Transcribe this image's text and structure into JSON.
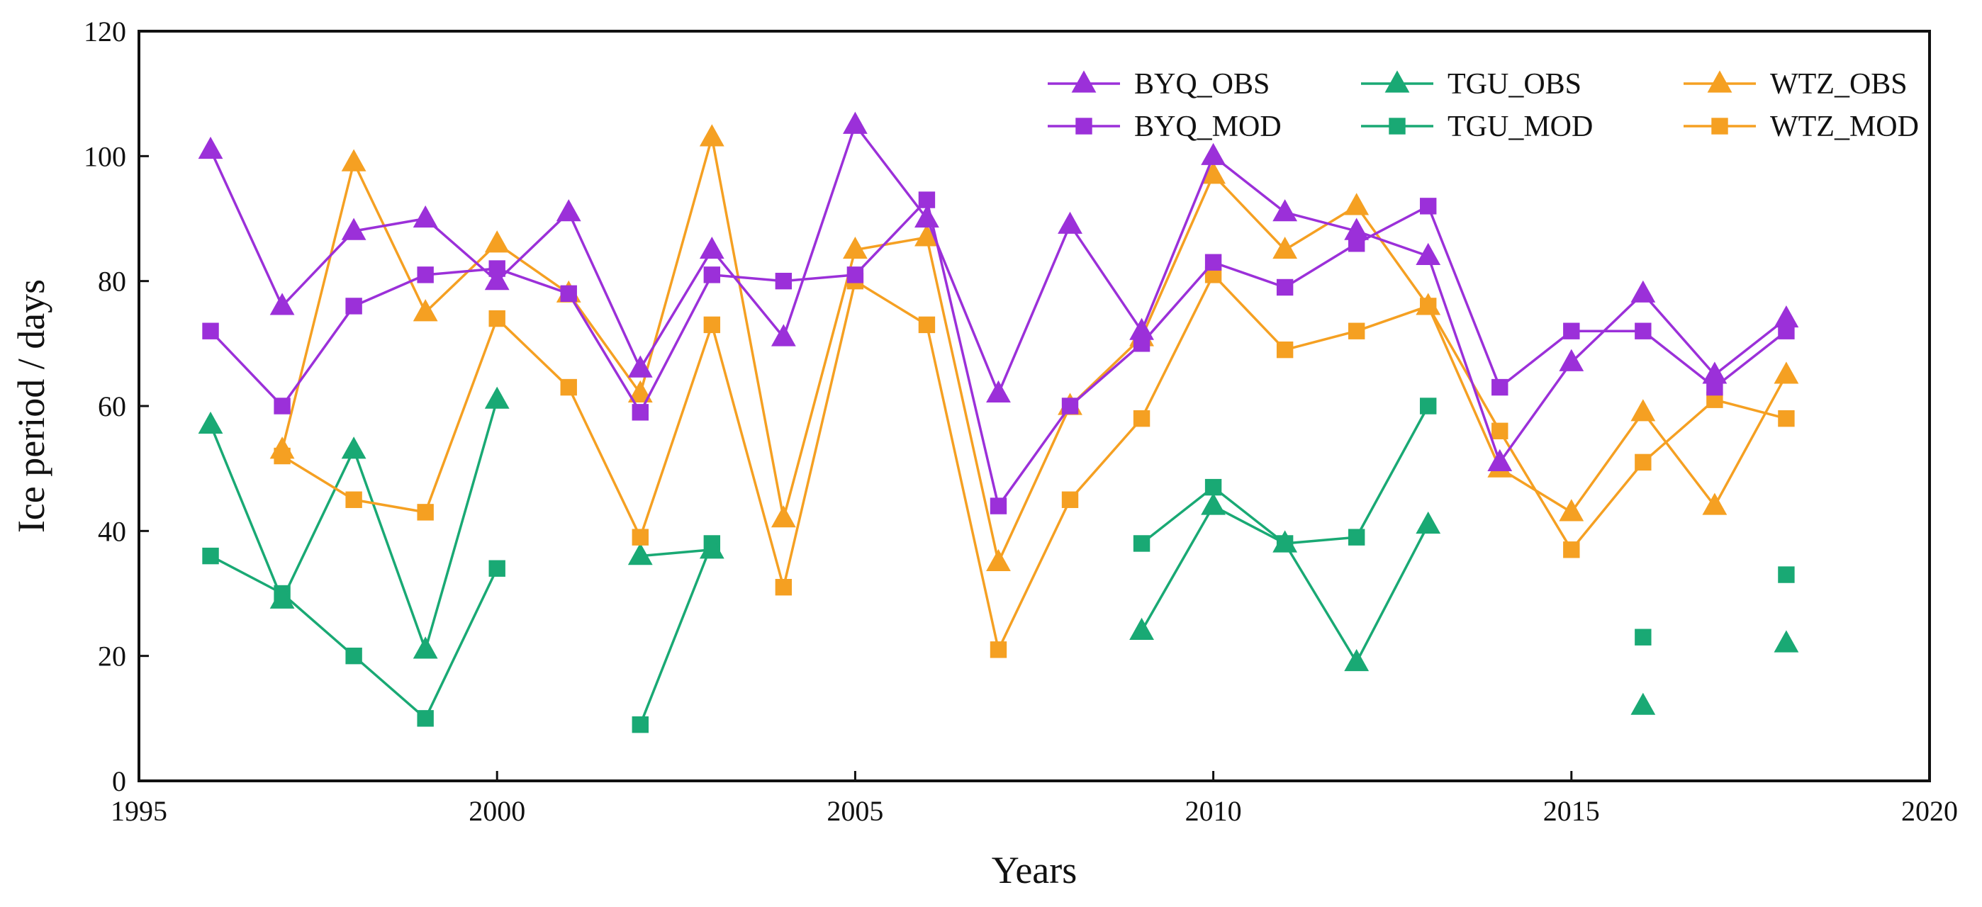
{
  "chart_data": {
    "type": "line",
    "title": "",
    "xlabel": "Years",
    "ylabel": "Ice period / days",
    "xlim": [
      1995,
      2020
    ],
    "ylim": [
      0,
      120
    ],
    "xticks": [
      "1995",
      "2000",
      "2005",
      "2010",
      "2015",
      "2020"
    ],
    "yticks": [
      "0",
      "20",
      "40",
      "60",
      "80",
      "100",
      "120"
    ],
    "grid": false,
    "legend_position": "top-right",
    "legend_columns": 3,
    "x": [
      1996,
      1997,
      1998,
      1999,
      2000,
      2001,
      2002,
      2003,
      2004,
      2005,
      2006,
      2007,
      2008,
      2009,
      2010,
      2011,
      2012,
      2013,
      2014,
      2015,
      2016,
      2017,
      2018
    ],
    "series": [
      {
        "name": "BYQ_OBS",
        "color": "#9b30d9",
        "marker": "triangle",
        "values": [
          101,
          76,
          88,
          90,
          80,
          91,
          66,
          85,
          71,
          105,
          90,
          62,
          89,
          72,
          100,
          91,
          88,
          84,
          51,
          67,
          78,
          65,
          74
        ]
      },
      {
        "name": "TGU_OBS",
        "color": "#19a974",
        "marker": "triangle",
        "values": [
          57,
          29,
          53,
          21,
          61,
          null,
          36,
          37,
          null,
          null,
          null,
          null,
          null,
          24,
          44,
          38,
          19,
          41,
          null,
          null,
          12,
          null,
          22
        ]
      },
      {
        "name": "WTZ_OBS",
        "color": "#f5a022",
        "marker": "triangle",
        "values": [
          null,
          53,
          99,
          75,
          86,
          78,
          62,
          103,
          42,
          85,
          87,
          35,
          60,
          71,
          97,
          85,
          92,
          76,
          50,
          43,
          59,
          44,
          65
        ]
      },
      {
        "name": "BYQ_MOD",
        "color": "#9b30d9",
        "marker": "square",
        "values": [
          72,
          60,
          76,
          81,
          82,
          78,
          59,
          81,
          80,
          81,
          93,
          44,
          60,
          70,
          83,
          79,
          86,
          92,
          63,
          72,
          72,
          63,
          72
        ]
      },
      {
        "name": "TGU_MOD",
        "color": "#19a974",
        "marker": "square",
        "values": [
          36,
          30,
          20,
          10,
          34,
          null,
          9,
          38,
          null,
          null,
          null,
          null,
          null,
          38,
          47,
          38,
          39,
          60,
          null,
          null,
          23,
          null,
          33
        ]
      },
      {
        "name": "WTZ_MOD",
        "color": "#f5a022",
        "marker": "square",
        "values": [
          null,
          52,
          45,
          43,
          74,
          63,
          39,
          73,
          31,
          80,
          73,
          21,
          45,
          58,
          81,
          69,
          72,
          76,
          56,
          37,
          51,
          61,
          58
        ]
      }
    ],
    "legend_order": [
      "BYQ_OBS",
      "TGU_OBS",
      "WTZ_OBS",
      "BYQ_MOD",
      "TGU_MOD",
      "WTZ_MOD"
    ]
  }
}
